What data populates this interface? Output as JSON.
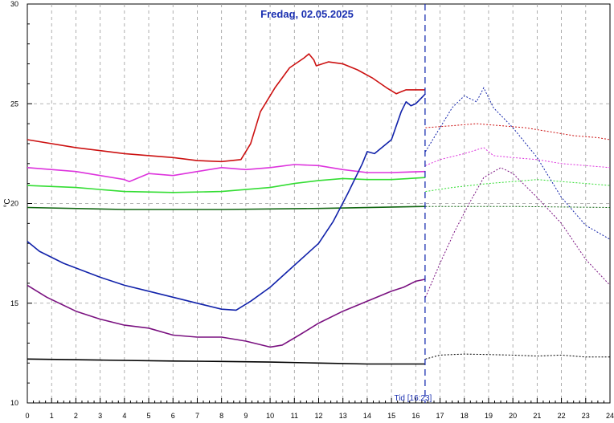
{
  "chart_data": {
    "type": "line",
    "title": "Fredag, 02.05.2025",
    "ylabel": "°C",
    "now_label": "Tid [16:23]",
    "now_x": 16.383,
    "xlim": [
      0,
      24
    ],
    "ylim": [
      10,
      30
    ],
    "x_ticks": [
      "0",
      "1",
      "2",
      "3",
      "4",
      "5",
      "6",
      "7",
      "8",
      "9",
      "10",
      "11",
      "12",
      "13",
      "14",
      "15",
      "16",
      "17",
      "18",
      "19",
      "20",
      "21",
      "22",
      "23",
      "24"
    ],
    "y_ticks": [
      "10",
      "15",
      "20",
      "25",
      "30"
    ],
    "y_ticks_values": [
      10,
      15,
      20,
      25,
      30
    ],
    "grid": true,
    "series": [
      {
        "color": "#cc1111",
        "measured": [
          [
            0,
            23.2
          ],
          [
            2,
            22.8
          ],
          [
            4,
            22.5
          ],
          [
            6,
            22.3
          ],
          [
            7,
            22.15
          ],
          [
            8,
            22.1
          ],
          [
            8.8,
            22.2
          ],
          [
            9.2,
            23.0
          ],
          [
            9.6,
            24.6
          ],
          [
            10.2,
            25.8
          ],
          [
            10.8,
            26.8
          ],
          [
            11.4,
            27.3
          ],
          [
            11.6,
            27.5
          ],
          [
            11.8,
            27.2
          ],
          [
            11.9,
            26.9
          ],
          [
            12.4,
            27.1
          ],
          [
            13,
            27.0
          ],
          [
            13.6,
            26.7
          ],
          [
            14.2,
            26.3
          ],
          [
            14.8,
            25.8
          ],
          [
            15.2,
            25.5
          ],
          [
            15.4,
            25.6
          ],
          [
            15.6,
            25.7
          ],
          [
            16.4,
            25.7
          ]
        ],
        "forecast": [
          [
            16.4,
            23.8
          ],
          [
            17.5,
            23.9
          ],
          [
            18.5,
            24.0
          ],
          [
            19.5,
            23.9
          ],
          [
            20.5,
            23.8
          ],
          [
            21.5,
            23.6
          ],
          [
            22.5,
            23.4
          ],
          [
            23.5,
            23.3
          ],
          [
            24,
            23.2
          ]
        ]
      },
      {
        "color": "#dd33dd",
        "measured": [
          [
            0,
            21.8
          ],
          [
            2,
            21.6
          ],
          [
            3,
            21.4
          ],
          [
            4,
            21.2
          ],
          [
            4.2,
            21.1
          ],
          [
            5,
            21.5
          ],
          [
            6,
            21.4
          ],
          [
            7,
            21.6
          ],
          [
            8,
            21.8
          ],
          [
            9,
            21.7
          ],
          [
            10,
            21.8
          ],
          [
            11,
            21.95
          ],
          [
            12,
            21.9
          ],
          [
            13,
            21.7
          ],
          [
            14,
            21.55
          ],
          [
            15,
            21.55
          ],
          [
            16.4,
            21.6
          ]
        ],
        "forecast": [
          [
            16.4,
            21.9
          ],
          [
            17,
            22.2
          ],
          [
            18,
            22.5
          ],
          [
            18.8,
            22.8
          ],
          [
            19.2,
            22.4
          ],
          [
            20,
            22.3
          ],
          [
            21,
            22.2
          ],
          [
            22,
            22.0
          ],
          [
            23,
            21.9
          ],
          [
            24,
            21.8
          ]
        ]
      },
      {
        "color": "#33dd33",
        "measured": [
          [
            0,
            20.9
          ],
          [
            2,
            20.8
          ],
          [
            4,
            20.6
          ],
          [
            6,
            20.55
          ],
          [
            8,
            20.6
          ],
          [
            10,
            20.8
          ],
          [
            11,
            21.0
          ],
          [
            12,
            21.15
          ],
          [
            13,
            21.25
          ],
          [
            14,
            21.2
          ],
          [
            15,
            21.2
          ],
          [
            16.4,
            21.3
          ]
        ],
        "forecast": [
          [
            16.4,
            20.6
          ],
          [
            17.5,
            20.8
          ],
          [
            19,
            21.0
          ],
          [
            20,
            21.1
          ],
          [
            21,
            21.2
          ],
          [
            22,
            21.1
          ],
          [
            23,
            21.0
          ],
          [
            24,
            20.9
          ]
        ]
      },
      {
        "color": "#116611",
        "measured": [
          [
            0,
            19.8
          ],
          [
            4,
            19.7
          ],
          [
            8,
            19.7
          ],
          [
            12,
            19.75
          ],
          [
            16.4,
            19.85
          ]
        ],
        "forecast": [
          [
            16.4,
            19.85
          ],
          [
            20,
            19.85
          ],
          [
            24,
            19.8
          ]
        ]
      },
      {
        "color": "#1122aa",
        "measured": [
          [
            0,
            18.1
          ],
          [
            0.5,
            17.6
          ],
          [
            1.5,
            17.0
          ],
          [
            3,
            16.3
          ],
          [
            4,
            15.9
          ],
          [
            5,
            15.6
          ],
          [
            6,
            15.3
          ],
          [
            7,
            15.0
          ],
          [
            8,
            14.7
          ],
          [
            8.6,
            14.65
          ],
          [
            9.2,
            15.1
          ],
          [
            10,
            15.8
          ],
          [
            11,
            16.9
          ],
          [
            12,
            18.0
          ],
          [
            12.6,
            19.1
          ],
          [
            13.2,
            20.5
          ],
          [
            13.8,
            22.0
          ],
          [
            14,
            22.6
          ],
          [
            14.3,
            22.5
          ],
          [
            15,
            23.2
          ],
          [
            15.4,
            24.6
          ],
          [
            15.6,
            25.1
          ],
          [
            15.8,
            24.9
          ],
          [
            16,
            25.0
          ],
          [
            16.4,
            25.5
          ]
        ],
        "forecast": [
          [
            16.4,
            22.6
          ],
          [
            17,
            23.8
          ],
          [
            17.5,
            24.8
          ],
          [
            18,
            25.4
          ],
          [
            18.5,
            25.1
          ],
          [
            18.8,
            25.8
          ],
          [
            19.2,
            24.8
          ],
          [
            20,
            23.8
          ],
          [
            21,
            22.3
          ],
          [
            22,
            20.3
          ],
          [
            23,
            18.9
          ],
          [
            24,
            18.2
          ]
        ]
      },
      {
        "color": "#7a1180",
        "measured": [
          [
            0,
            15.9
          ],
          [
            0.8,
            15.3
          ],
          [
            2,
            14.6
          ],
          [
            3,
            14.2
          ],
          [
            4,
            13.9
          ],
          [
            5,
            13.75
          ],
          [
            6,
            13.4
          ],
          [
            7,
            13.3
          ],
          [
            8,
            13.3
          ],
          [
            9,
            13.1
          ],
          [
            10,
            12.8
          ],
          [
            10.5,
            12.9
          ],
          [
            11.2,
            13.4
          ],
          [
            12,
            14.0
          ],
          [
            13,
            14.6
          ],
          [
            14,
            15.1
          ],
          [
            15,
            15.6
          ],
          [
            15.5,
            15.8
          ],
          [
            16,
            16.1
          ],
          [
            16.4,
            16.2
          ]
        ],
        "forecast": [
          [
            16.4,
            15.3
          ],
          [
            17,
            17.0
          ],
          [
            17.6,
            18.6
          ],
          [
            18.2,
            20.0
          ],
          [
            18.8,
            21.3
          ],
          [
            19.5,
            21.8
          ],
          [
            20,
            21.5
          ],
          [
            21,
            20.3
          ],
          [
            22,
            19.0
          ],
          [
            23,
            17.2
          ],
          [
            24,
            15.9
          ]
        ]
      },
      {
        "color": "#000000",
        "measured": [
          [
            0,
            12.2
          ],
          [
            3,
            12.15
          ],
          [
            6,
            12.1
          ],
          [
            8,
            12.08
          ],
          [
            10,
            12.05
          ],
          [
            12,
            12.0
          ],
          [
            14,
            11.95
          ],
          [
            16.4,
            11.95
          ]
        ],
        "forecast": [
          [
            16.4,
            12.2
          ],
          [
            17,
            12.4
          ],
          [
            18,
            12.45
          ],
          [
            20,
            12.4
          ],
          [
            21,
            12.35
          ],
          [
            22,
            12.4
          ],
          [
            23,
            12.3
          ],
          [
            24,
            12.3
          ]
        ]
      }
    ]
  }
}
